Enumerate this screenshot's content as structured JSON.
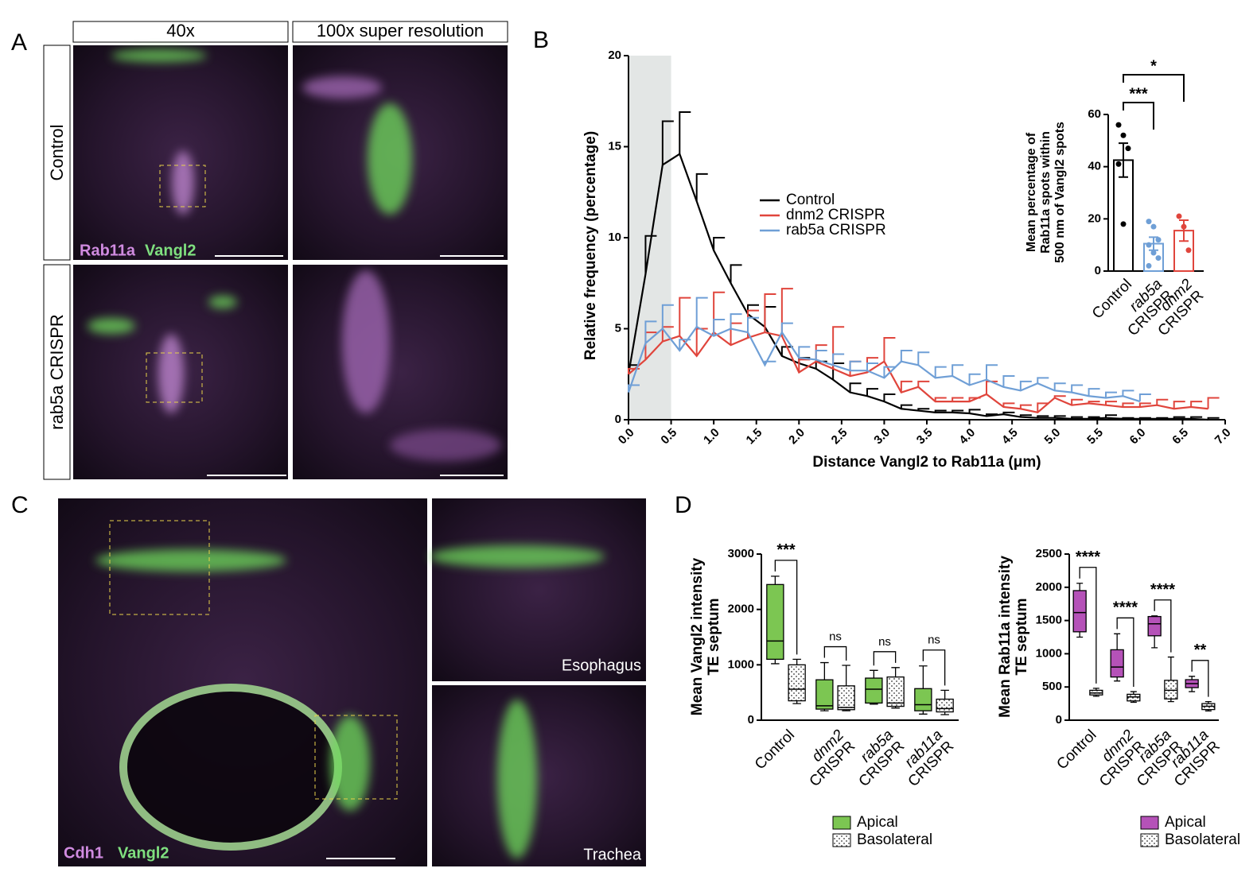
{
  "panels": {
    "labels": [
      "A",
      "B",
      "C",
      "D"
    ]
  },
  "images": {
    "A": {
      "col_headers": [
        "40x",
        "100x super resolution"
      ],
      "row_labels": [
        "Control",
        "rab5a CRISPR"
      ],
      "stains": [
        "Rab11a",
        "Vangl2"
      ]
    },
    "C": {
      "stains": [
        "Cdh1",
        "Vangl2"
      ],
      "insets": [
        "Esophagus",
        "Trachea"
      ]
    }
  },
  "chart_data": [
    {
      "type": "line",
      "xlabel": "Distance Vangl2 to Rab11a (μm)",
      "ylabel": "Relative frequency (percentage)",
      "x": [
        0,
        0.2,
        0.4,
        0.6,
        0.8,
        1,
        1.2,
        1.4,
        1.6,
        1.8,
        2,
        2.2,
        2.4,
        2.6,
        2.8,
        3,
        3.2,
        3.4,
        3.6,
        3.8,
        4,
        4.2,
        4.4,
        4.6,
        4.8,
        5,
        5.2,
        5.4,
        5.6,
        5.8,
        6,
        6.2,
        6.4,
        6.6,
        6.8
      ],
      "series": [
        {
          "name": "Control",
          "color": "#000000",
          "values": [
            2.5,
            8,
            14,
            14.6,
            12,
            9.3,
            7.5,
            5.8,
            5.1,
            3.5,
            3.1,
            2.8,
            2.2,
            1.5,
            1.3,
            1.0,
            0.6,
            0.5,
            0.4,
            0.4,
            0.35,
            0.2,
            0.3,
            0.15,
            0.1,
            0.1,
            0.05,
            0.05,
            0.1,
            0.05,
            0.05,
            0.05,
            0.05,
            0.05,
            0
          ],
          "errors": [
            0.5,
            2.1,
            2.4,
            2.3,
            1.5,
            0.7,
            1.0,
            0.5,
            1.1,
            0.5,
            0.3,
            0.4,
            0.9,
            0.5,
            0.4,
            0.4,
            0.2,
            0.1,
            0.1,
            0.1,
            0.2,
            0.1,
            0.1,
            0.1,
            0.1,
            0.1,
            0.1,
            0.1,
            0.15,
            0.05,
            0.05,
            0.05,
            0.1,
            0.1,
            0.1
          ]
        },
        {
          "name": "dnm2 CRISPR",
          "color": "#e0453c",
          "values": [
            2.5,
            3.3,
            4.3,
            4.6,
            3.5,
            4.8,
            4.1,
            4.5,
            4.8,
            4.6,
            2.6,
            3.2,
            2.8,
            2.4,
            2.6,
            3.2,
            1.5,
            1.8,
            1.0,
            1.0,
            1.0,
            1.4,
            0.7,
            0.6,
            0.4,
            1.2,
            0.8,
            0.9,
            0.8,
            0.7,
            0.7,
            0.8,
            0.6,
            0.7,
            0.6
          ],
          "errors": [
            0.3,
            1.5,
            0.8,
            2.1,
            1.5,
            2.2,
            1.2,
            1.5,
            2.1,
            2.6,
            0.7,
            0.9,
            2.3,
            0.8,
            0.8,
            1.3,
            0.6,
            0.3,
            0.2,
            0.2,
            0.2,
            0.7,
            0.2,
            0.2,
            0.5,
            0.1,
            0.3,
            0.1,
            0.2,
            0.2,
            0.2,
            0.3,
            0.4,
            0.3,
            0.6
          ]
        },
        {
          "name": "rab5a CRISPR",
          "color": "#6f9fd6",
          "values": [
            1.5,
            4.2,
            5.0,
            3.8,
            5.1,
            4.6,
            5.0,
            4.8,
            3.0,
            4.8,
            3.4,
            3.3,
            3.0,
            2.7,
            2.7,
            2.3,
            3.2,
            3.0,
            2.3,
            2.4,
            1.9,
            2.2,
            1.8,
            1.6,
            2.0,
            1.6,
            1.5,
            1.3,
            1.2,
            1.3,
            1.0,
            null,
            null,
            null,
            null
          ],
          "errors": [
            0.4,
            1.2,
            1.3,
            0.6,
            1.6,
            0.9,
            0.8,
            0.8,
            0.2,
            0.5,
            0.6,
            0.5,
            0.6,
            0.5,
            0.4,
            0.6,
            0.6,
            0.7,
            0.6,
            0.6,
            0.6,
            0.8,
            0.6,
            0.5,
            0.3,
            0.4,
            0.4,
            0.4,
            0.3,
            0.3,
            0.4,
            null,
            null,
            null,
            null
          ]
        }
      ],
      "shade": [
        0,
        0.5
      ],
      "xlim": [
        0,
        7
      ],
      "ylim": [
        0,
        20
      ],
      "xticks": [
        {
          "value": 0,
          "label": "0.0"
        },
        0.5,
        {
          "value": 1,
          "label": "1.0"
        },
        1.5,
        {
          "value": 2,
          "label": "2.0"
        },
        2.5,
        {
          "value": 3,
          "label": "3.0"
        },
        3.5,
        {
          "value": 4,
          "label": "4.0"
        },
        4.5,
        {
          "value": 5,
          "label": "5.0"
        },
        5.5,
        {
          "value": 6,
          "label": "6.0"
        },
        6.5,
        {
          "value": 7,
          "label": "7.0"
        }
      ],
      "yticks": [
        0,
        5,
        10,
        15,
        20
      ]
    },
    {
      "type": "bar",
      "ylabel": [
        "Mean percentage of",
        "Rab11a spots within",
        "500 nm of Vangl2 spots"
      ],
      "categories": [
        [
          "Control"
        ],
        [
          "rab5a",
          "CRISPR"
        ],
        [
          "dnm2",
          "CRISPR"
        ]
      ],
      "values": [
        42.5,
        10.5,
        15.5
      ],
      "errors": [
        6.5,
        2.5,
        4
      ],
      "points": [
        [
          56,
          52,
          47,
          41,
          18
        ],
        [
          19,
          17,
          12,
          10,
          7,
          5,
          2
        ],
        [
          21,
          17,
          8
        ]
      ],
      "colors": [
        "#000000",
        "#6f9fd6",
        "#e0453c"
      ],
      "significance": [
        "***",
        "*"
      ],
      "ylim": [
        0,
        60
      ],
      "yticks": [
        0,
        20,
        40,
        60
      ]
    },
    {
      "type": "box",
      "ylabel": [
        "Mean Vangl2 intensity",
        "TE septum"
      ],
      "categories": [
        [
          "Control"
        ],
        [
          "dnm2",
          "CRISPR"
        ],
        [
          "rab5a",
          "CRISPR"
        ],
        [
          "rab11a",
          "CRISPR"
        ]
      ],
      "series": [
        {
          "name": "Apical",
          "color": "#7cc652",
          "values": [
            [
              1020,
              1100,
              1430,
              2450,
              2600
            ],
            [
              170,
              200,
              260,
              730,
              1040
            ],
            [
              290,
              310,
              560,
              760,
              900
            ],
            [
              110,
              170,
              280,
              570,
              980
            ]
          ]
        },
        {
          "name": "Basolateral",
          "color": "#ffffff",
          "values": [
            [
              300,
              350,
              560,
              1000,
              1100
            ],
            [
              170,
              190,
              230,
              620,
              990
            ],
            [
              220,
              250,
              310,
              780,
              950
            ],
            [
              100,
              150,
              210,
              380,
              540
            ]
          ]
        }
      ],
      "significance": [
        "***",
        "ns",
        "ns",
        "ns"
      ],
      "ylim": [
        0,
        3000
      ],
      "yticks": [
        0,
        1000,
        2000,
        3000
      ]
    },
    {
      "type": "box",
      "ylabel": [
        "Mean Rab11a intensity",
        "TE septum"
      ],
      "categories": [
        [
          "Control"
        ],
        [
          "dnm2",
          "CRISPR"
        ],
        [
          "rab5a",
          "CRISPR"
        ],
        [
          "rab11a",
          "CRISPR"
        ]
      ],
      "series": [
        {
          "name": "Apical",
          "color": "#b552b8",
          "values": [
            [
              1250,
              1330,
              1620,
              1950,
              2060
            ],
            [
              590,
              650,
              800,
              1060,
              1300
            ],
            [
              1090,
              1270,
              1450,
              1560,
              1570
            ],
            [
              430,
              490,
              550,
              610,
              660
            ]
          ]
        },
        {
          "name": "Basolateral",
          "color": "#ffffff",
          "values": [
            [
              360,
              380,
              410,
              450,
              480
            ],
            [
              270,
              290,
              350,
              390,
              430
            ],
            [
              280,
              320,
              450,
              600,
              950
            ],
            [
              140,
              160,
              210,
              250,
              280
            ]
          ]
        }
      ],
      "significance": [
        "****",
        "****",
        "****",
        "**"
      ],
      "ylim": [
        0,
        2500
      ],
      "yticks": [
        0,
        500,
        1000,
        1500,
        2000,
        2500
      ]
    }
  ]
}
